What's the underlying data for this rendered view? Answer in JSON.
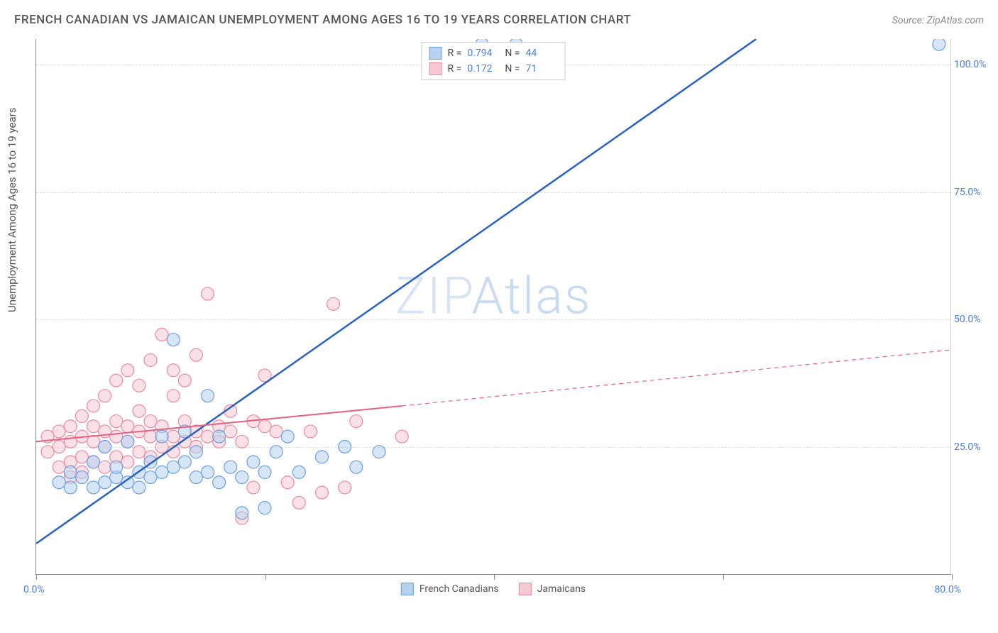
{
  "title": "FRENCH CANADIAN VS JAMAICAN UNEMPLOYMENT AMONG AGES 16 TO 19 YEARS CORRELATION CHART",
  "source_prefix": "Source: ",
  "source_name": "ZipAtlas.com",
  "y_axis_label": "Unemployment Among Ages 16 to 19 years",
  "watermark_zip": "ZIP",
  "watermark_atlas": "Atlas",
  "chart": {
    "type": "scatter",
    "xlim": [
      0,
      80
    ],
    "ylim": [
      0,
      105
    ],
    "x_ticks": [
      0,
      20,
      40,
      60,
      80
    ],
    "y_ticks": [
      25,
      50,
      75,
      100
    ],
    "y_tick_labels": [
      "25.0%",
      "50.0%",
      "75.0%",
      "100.0%"
    ],
    "x_origin_label": "0.0%",
    "x_max_label": "80.0%",
    "background_color": "#ffffff",
    "grid_color": "#dddddd",
    "axis_color": "#888888",
    "tick_label_color": "#4a7fd6"
  },
  "series": {
    "french_canadians": {
      "label": "French Canadians",
      "r_value": "0.794",
      "n_value": "44",
      "point_fill": "#b7d1f0",
      "point_stroke": "#6a9fe0",
      "line_color": "#2860c4",
      "line_width": 2.5,
      "line_dash": "none",
      "trend_start": [
        0,
        6
      ],
      "trend_end": [
        63,
        105
      ],
      "data": [
        [
          2,
          18
        ],
        [
          3,
          17
        ],
        [
          3,
          20
        ],
        [
          4,
          19
        ],
        [
          5,
          17
        ],
        [
          5,
          22
        ],
        [
          6,
          18
        ],
        [
          6,
          25
        ],
        [
          7,
          19
        ],
        [
          7,
          21
        ],
        [
          8,
          18
        ],
        [
          8,
          26
        ],
        [
          9,
          20
        ],
        [
          9,
          17
        ],
        [
          10,
          22
        ],
        [
          10,
          19
        ],
        [
          11,
          27
        ],
        [
          11,
          20
        ],
        [
          12,
          21
        ],
        [
          12,
          46
        ],
        [
          13,
          28
        ],
        [
          13,
          22
        ],
        [
          14,
          19
        ],
        [
          14,
          24
        ],
        [
          15,
          20
        ],
        [
          15,
          35
        ],
        [
          16,
          18
        ],
        [
          16,
          27
        ],
        [
          17,
          21
        ],
        [
          18,
          19
        ],
        [
          18,
          12
        ],
        [
          19,
          22
        ],
        [
          20,
          20
        ],
        [
          20,
          13
        ],
        [
          21,
          24
        ],
        [
          22,
          27
        ],
        [
          23,
          20
        ],
        [
          25,
          23
        ],
        [
          27,
          25
        ],
        [
          28,
          21
        ],
        [
          30,
          24
        ],
        [
          39,
          104
        ],
        [
          42,
          104
        ],
        [
          79,
          104
        ]
      ]
    },
    "jamaicans": {
      "label": "Jamaicans",
      "r_value": "0.172",
      "n_value": "71",
      "point_fill": "#f6c8d4",
      "point_stroke": "#e88aa2",
      "line_color": "#e8607f",
      "line_width": 2,
      "line_dash_extrapolate": "6,5",
      "trend_start": [
        0,
        26
      ],
      "trend_solid_end": [
        32,
        33
      ],
      "trend_end": [
        80,
        44
      ],
      "data": [
        [
          1,
          24
        ],
        [
          1,
          27
        ],
        [
          2,
          21
        ],
        [
          2,
          25
        ],
        [
          2,
          28
        ],
        [
          3,
          22
        ],
        [
          3,
          26
        ],
        [
          3,
          29
        ],
        [
          3,
          19
        ],
        [
          4,
          23
        ],
        [
          4,
          27
        ],
        [
          4,
          31
        ],
        [
          4,
          20
        ],
        [
          5,
          22
        ],
        [
          5,
          26
        ],
        [
          5,
          29
        ],
        [
          5,
          33
        ],
        [
          6,
          21
        ],
        [
          6,
          25
        ],
        [
          6,
          28
        ],
        [
          6,
          35
        ],
        [
          7,
          23
        ],
        [
          7,
          27
        ],
        [
          7,
          30
        ],
        [
          7,
          38
        ],
        [
          8,
          22
        ],
        [
          8,
          26
        ],
        [
          8,
          29
        ],
        [
          8,
          40
        ],
        [
          9,
          24
        ],
        [
          9,
          28
        ],
        [
          9,
          32
        ],
        [
          9,
          37
        ],
        [
          10,
          23
        ],
        [
          10,
          27
        ],
        [
          10,
          30
        ],
        [
          10,
          42
        ],
        [
          11,
          25
        ],
        [
          11,
          29
        ],
        [
          11,
          47
        ],
        [
          12,
          24
        ],
        [
          12,
          27
        ],
        [
          12,
          35
        ],
        [
          12,
          40
        ],
        [
          13,
          26
        ],
        [
          13,
          30
        ],
        [
          13,
          38
        ],
        [
          14,
          25
        ],
        [
          14,
          28
        ],
        [
          14,
          43
        ],
        [
          15,
          27
        ],
        [
          15,
          55
        ],
        [
          16,
          26
        ],
        [
          16,
          29
        ],
        [
          17,
          28
        ],
        [
          17,
          32
        ],
        [
          18,
          26
        ],
        [
          18,
          11
        ],
        [
          19,
          30
        ],
        [
          19,
          17
        ],
        [
          20,
          29
        ],
        [
          20,
          39
        ],
        [
          21,
          28
        ],
        [
          22,
          18
        ],
        [
          23,
          14
        ],
        [
          24,
          28
        ],
        [
          25,
          16
        ],
        [
          26,
          53
        ],
        [
          27,
          17
        ],
        [
          28,
          30
        ],
        [
          32,
          27
        ]
      ]
    }
  },
  "legend_top": {
    "r_label": "R =",
    "n_label": "N ="
  }
}
